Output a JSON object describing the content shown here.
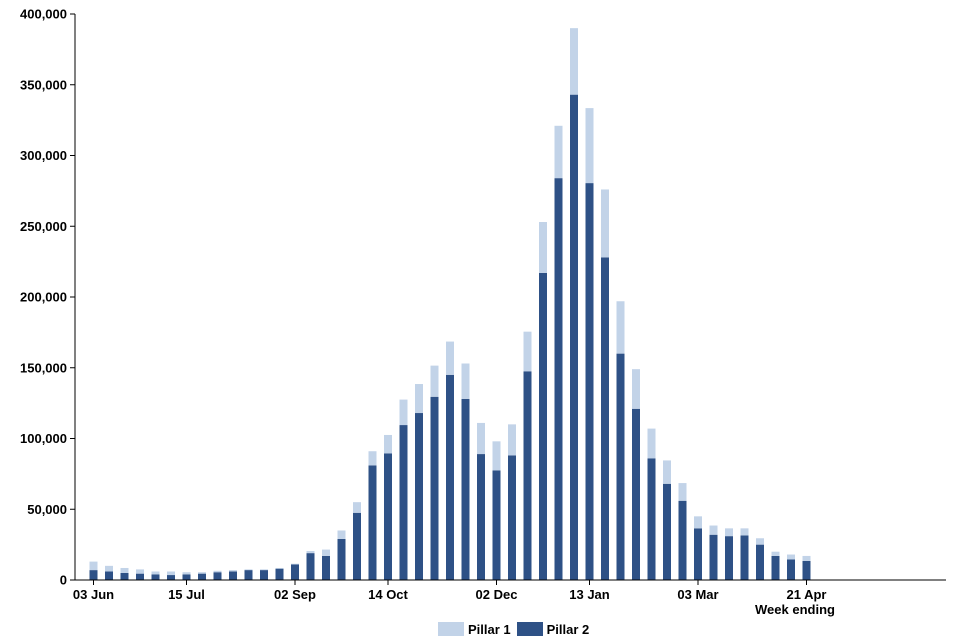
{
  "chart_data": {
    "type": "bar",
    "stacked": true,
    "xlabel": "Week ending",
    "ylabel": "",
    "ylim": [
      0,
      400000
    ],
    "yticks": [
      0,
      50000,
      100000,
      150000,
      200000,
      250000,
      300000,
      350000,
      400000
    ],
    "ytick_labels": [
      "0",
      "50,000",
      "100,000",
      "150,000",
      "200,000",
      "250,000",
      "300,000",
      "350,000",
      "400,000"
    ],
    "xtick_labels": [
      {
        "index": 0,
        "label": "03 Jun"
      },
      {
        "index": 6,
        "label": "15 Jul"
      },
      {
        "index": 13,
        "label": "02 Sep"
      },
      {
        "index": 19,
        "label": "14 Oct"
      },
      {
        "index": 26,
        "label": "02 Dec"
      },
      {
        "index": 32,
        "label": "13 Jan"
      },
      {
        "index": 39,
        "label": "03 Mar"
      },
      {
        "index": 46,
        "label": "21 Apr"
      }
    ],
    "legend_position": "bottom",
    "series": [
      {
        "name": "Pillar 2",
        "color": "#2e5186",
        "values": [
          7000,
          6000,
          5000,
          4500,
          4000,
          3500,
          4000,
          4500,
          5500,
          6000,
          7000,
          7000,
          8000,
          11000,
          19000,
          17000,
          29000,
          47500,
          81000,
          89500,
          109500,
          118000,
          129500,
          145000,
          128000,
          89000,
          77500,
          88000,
          147500,
          217000,
          284000,
          343000,
          280500,
          228000,
          160000,
          121000,
          86000,
          68000,
          56000,
          36500,
          32000,
          31000,
          31500,
          25000,
          17000,
          14500,
          13500
        ]
      },
      {
        "name": "Pillar 1",
        "color": "#c2d3e8",
        "values": [
          6000,
          4000,
          3500,
          3000,
          2000,
          2500,
          1500,
          1000,
          1000,
          1000,
          500,
          500,
          500,
          500,
          1500,
          4500,
          6000,
          7500,
          10000,
          13000,
          18000,
          20500,
          22000,
          23500,
          25000,
          22000,
          20500,
          22000,
          28000,
          36000,
          37000,
          47000,
          53000,
          48000,
          37000,
          28000,
          21000,
          16500,
          12500,
          8500,
          6500,
          5500,
          5000,
          4500,
          3000,
          3500,
          3500
        ]
      }
    ]
  }
}
